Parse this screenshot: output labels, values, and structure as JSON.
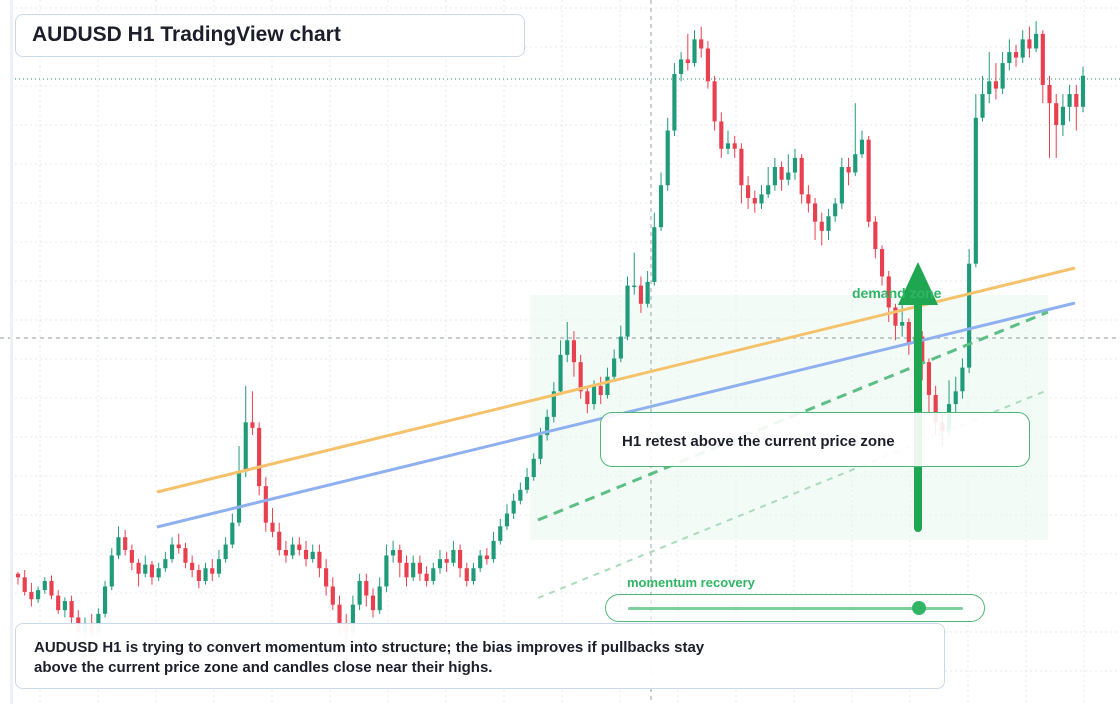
{
  "chart_data": {
    "type": "candlestick",
    "title": "AUDUSD H1 TradingView chart",
    "symbol": "AUDUSD",
    "timeframe": "H1",
    "colors": {
      "up": "#1f9b7a",
      "down": "#e8404f",
      "grid": "#e6e9ee",
      "trend_orange": "#f5c26b",
      "trend_blue": "#8fb0f0",
      "accent_green": "#2fb565"
    },
    "candles": [
      [
        0.92,
        0.9,
        0.93,
        0.86
      ],
      [
        0.9,
        0.82,
        0.94,
        0.8
      ],
      [
        0.82,
        0.78,
        0.87,
        0.74
      ],
      [
        0.78,
        0.83,
        0.85,
        0.76
      ],
      [
        0.83,
        0.88,
        0.9,
        0.81
      ],
      [
        0.88,
        0.8,
        0.91,
        0.78
      ],
      [
        0.8,
        0.72,
        0.83,
        0.7
      ],
      [
        0.72,
        0.77,
        0.79,
        0.68
      ],
      [
        0.77,
        0.68,
        0.8,
        0.64
      ],
      [
        0.68,
        0.6,
        0.72,
        0.55
      ],
      [
        0.6,
        0.65,
        0.68,
        0.57
      ],
      [
        0.65,
        0.6,
        0.7,
        0.57
      ],
      [
        0.6,
        0.7,
        0.73,
        0.58
      ],
      [
        0.7,
        0.85,
        0.88,
        0.68
      ],
      [
        0.85,
        1.02,
        1.06,
        0.83
      ],
      [
        1.02,
        1.12,
        1.18,
        1.0
      ],
      [
        1.12,
        1.05,
        1.16,
        1.02
      ],
      [
        1.05,
        0.98,
        1.08,
        0.94
      ],
      [
        0.98,
        0.92,
        1.0,
        0.85
      ],
      [
        0.92,
        0.97,
        1.02,
        0.9
      ],
      [
        0.97,
        0.9,
        0.99,
        0.86
      ],
      [
        0.9,
        0.95,
        0.98,
        0.88
      ],
      [
        0.95,
        1.0,
        1.04,
        0.93
      ],
      [
        1.0,
        1.08,
        1.12,
        0.98
      ],
      [
        1.08,
        1.06,
        1.14,
        1.03
      ],
      [
        1.06,
        0.98,
        1.09,
        0.95
      ],
      [
        0.98,
        0.94,
        1.02,
        0.9
      ],
      [
        0.94,
        0.88,
        0.97,
        0.84
      ],
      [
        0.88,
        0.95,
        0.98,
        0.86
      ],
      [
        0.95,
        0.92,
        1.0,
        0.88
      ],
      [
        0.92,
        1.0,
        1.05,
        0.9
      ],
      [
        1.0,
        1.08,
        1.12,
        0.98
      ],
      [
        1.08,
        1.2,
        1.25,
        1.06
      ],
      [
        1.2,
        1.48,
        1.62,
        1.18
      ],
      [
        1.48,
        1.75,
        1.95,
        1.45
      ],
      [
        1.75,
        1.72,
        1.92,
        1.68
      ],
      [
        1.72,
        1.4,
        1.75,
        1.35
      ],
      [
        1.4,
        1.2,
        1.45,
        1.15
      ],
      [
        1.2,
        1.15,
        1.28,
        1.12
      ],
      [
        1.15,
        1.05,
        1.2,
        1.02
      ],
      [
        1.05,
        1.02,
        1.1,
        0.98
      ],
      [
        1.02,
        1.08,
        1.12,
        1.0
      ],
      [
        1.08,
        1.05,
        1.12,
        1.02
      ],
      [
        1.05,
        1.0,
        1.1,
        0.96
      ],
      [
        1.0,
        1.04,
        1.08,
        0.98
      ],
      [
        1.04,
        0.95,
        1.08,
        0.9
      ],
      [
        0.95,
        0.85,
        1.0,
        0.8
      ],
      [
        0.85,
        0.75,
        0.9,
        0.72
      ],
      [
        0.75,
        0.65,
        0.8,
        0.58
      ],
      [
        0.65,
        0.6,
        0.7,
        0.55
      ],
      [
        0.6,
        0.75,
        0.8,
        0.58
      ],
      [
        0.75,
        0.88,
        0.92,
        0.72
      ],
      [
        0.88,
        0.8,
        0.92,
        0.74
      ],
      [
        0.8,
        0.72,
        0.84,
        0.68
      ],
      [
        0.72,
        0.85,
        0.9,
        0.7
      ],
      [
        0.85,
        1.02,
        1.08,
        0.82
      ],
      [
        1.02,
        1.05,
        1.1,
        0.98
      ],
      [
        1.05,
        0.98,
        1.08,
        0.9
      ],
      [
        0.98,
        0.9,
        1.02,
        0.85
      ],
      [
        0.9,
        0.98,
        1.02,
        0.88
      ],
      [
        0.98,
        0.92,
        1.02,
        0.88
      ],
      [
        0.92,
        0.88,
        0.96,
        0.85
      ],
      [
        0.88,
        0.95,
        0.98,
        0.86
      ],
      [
        0.95,
        1.0,
        1.05,
        0.92
      ],
      [
        1.0,
        0.98,
        1.04,
        0.93
      ],
      [
        0.98,
        1.05,
        1.1,
        0.96
      ],
      [
        1.05,
        0.95,
        1.08,
        0.9
      ],
      [
        0.95,
        0.88,
        0.98,
        0.85
      ],
      [
        0.88,
        0.95,
        0.98,
        0.86
      ],
      [
        0.95,
        1.02,
        1.05,
        0.93
      ],
      [
        1.02,
        1.0,
        1.06,
        0.97
      ],
      [
        1.0,
        1.1,
        1.15,
        0.98
      ],
      [
        1.1,
        1.18,
        1.22,
        1.08
      ],
      [
        1.18,
        1.25,
        1.3,
        1.16
      ],
      [
        1.25,
        1.32,
        1.36,
        1.22
      ],
      [
        1.32,
        1.38,
        1.42,
        1.3
      ],
      [
        1.38,
        1.45,
        1.5,
        1.36
      ],
      [
        1.45,
        1.55,
        1.58,
        1.43
      ],
      [
        1.55,
        1.68,
        1.72,
        1.52
      ],
      [
        1.68,
        1.78,
        1.82,
        1.65
      ],
      [
        1.78,
        1.92,
        1.97,
        1.75
      ],
      [
        1.92,
        2.12,
        2.2,
        1.9
      ],
      [
        2.12,
        2.2,
        2.3,
        2.08
      ],
      [
        2.2,
        2.08,
        2.25,
        2.0
      ],
      [
        2.08,
        1.92,
        2.12,
        1.88
      ],
      [
        1.92,
        1.85,
        1.95,
        1.8
      ],
      [
        1.85,
        1.95,
        1.98,
        1.82
      ],
      [
        1.95,
        1.9,
        2.0,
        1.85
      ],
      [
        1.9,
        2.0,
        2.05,
        1.88
      ],
      [
        2.0,
        2.1,
        2.15,
        1.98
      ],
      [
        2.1,
        2.22,
        2.28,
        2.08
      ],
      [
        2.22,
        2.5,
        2.55,
        2.2
      ],
      [
        2.5,
        2.5,
        2.68,
        2.45
      ],
      [
        2.5,
        2.4,
        2.55,
        2.35
      ],
      [
        2.4,
        2.52,
        2.58,
        2.38
      ],
      [
        2.52,
        2.82,
        2.9,
        2.5
      ],
      [
        2.82,
        3.05,
        3.12,
        2.8
      ],
      [
        3.05,
        3.35,
        3.42,
        3.02
      ],
      [
        3.35,
        3.66,
        3.72,
        3.32
      ],
      [
        3.66,
        3.74,
        3.78,
        3.62
      ],
      [
        3.74,
        3.72,
        3.88,
        3.68
      ],
      [
        3.72,
        3.85,
        3.9,
        3.7
      ],
      [
        3.85,
        3.8,
        3.92,
        3.75
      ],
      [
        3.8,
        3.62,
        3.84,
        3.58
      ],
      [
        3.62,
        3.4,
        3.65,
        3.35
      ],
      [
        3.4,
        3.25,
        3.45,
        3.2
      ],
      [
        3.25,
        3.28,
        3.35,
        3.22
      ],
      [
        3.28,
        3.25,
        3.32,
        3.2
      ],
      [
        3.25,
        3.05,
        3.28,
        2.95
      ],
      [
        3.05,
        2.98,
        3.1,
        2.92
      ],
      [
        2.98,
        2.95,
        3.02,
        2.9
      ],
      [
        2.95,
        3.0,
        3.05,
        2.92
      ],
      [
        3.0,
        3.05,
        3.15,
        2.98
      ],
      [
        3.05,
        3.15,
        3.2,
        3.02
      ],
      [
        3.15,
        3.08,
        3.18,
        3.02
      ],
      [
        3.08,
        3.12,
        3.22,
        3.05
      ],
      [
        3.12,
        3.2,
        3.25,
        3.08
      ],
      [
        3.2,
        3.0,
        3.22,
        2.95
      ],
      [
        3.0,
        2.95,
        3.05,
        2.9
      ],
      [
        2.95,
        2.85,
        2.98,
        2.75
      ],
      [
        2.85,
        2.8,
        2.9,
        2.72
      ],
      [
        2.8,
        2.88,
        2.92,
        2.75
      ],
      [
        2.88,
        2.95,
        2.98,
        2.85
      ],
      [
        2.95,
        3.15,
        3.2,
        2.92
      ],
      [
        3.15,
        3.12,
        3.2,
        3.05
      ],
      [
        3.12,
        3.22,
        3.5,
        3.1
      ],
      [
        3.22,
        3.3,
        3.35,
        3.2
      ],
      [
        3.3,
        2.85,
        3.32,
        2.82
      ],
      [
        2.85,
        2.7,
        2.88,
        2.65
      ],
      [
        2.7,
        2.55,
        2.72,
        2.5
      ],
      [
        2.55,
        2.38,
        2.58,
        2.3
      ],
      [
        2.38,
        2.28,
        2.4,
        2.2
      ],
      [
        2.28,
        2.3,
        2.4,
        2.22
      ],
      [
        2.3,
        2.18,
        2.32,
        2.12
      ],
      [
        2.18,
        2.22,
        2.3,
        2.15
      ],
      [
        2.22,
        2.08,
        2.25,
        1.98
      ],
      [
        2.08,
        1.9,
        2.1,
        1.8
      ],
      [
        1.9,
        1.75,
        1.95,
        1.68
      ],
      [
        1.75,
        1.7,
        1.8,
        1.62
      ],
      [
        1.7,
        1.85,
        1.98,
        1.68
      ],
      [
        1.85,
        1.92,
        2.0,
        1.8
      ],
      [
        1.92,
        2.05,
        2.1,
        1.88
      ],
      [
        2.05,
        2.62,
        2.7,
        2.02
      ],
      [
        2.62,
        3.42,
        3.55,
        2.6
      ],
      [
        3.42,
        3.55,
        3.65,
        3.4
      ],
      [
        3.55,
        3.62,
        3.78,
        3.5
      ],
      [
        3.62,
        3.58,
        3.72,
        3.52
      ],
      [
        3.58,
        3.72,
        3.78,
        3.55
      ],
      [
        3.72,
        3.78,
        3.85,
        3.68
      ],
      [
        3.78,
        3.75,
        3.82,
        3.7
      ],
      [
        3.75,
        3.85,
        3.9,
        3.72
      ],
      [
        3.85,
        3.8,
        3.92,
        3.75
      ],
      [
        3.8,
        3.88,
        3.95,
        3.78
      ],
      [
        3.88,
        3.6,
        3.9,
        3.5
      ],
      [
        3.6,
        3.5,
        3.65,
        3.2
      ],
      [
        3.5,
        3.38,
        3.55,
        3.2
      ],
      [
        3.38,
        3.48,
        3.55,
        3.32
      ],
      [
        3.48,
        3.55,
        3.6,
        3.4
      ],
      [
        3.55,
        3.48,
        3.6,
        3.35
      ],
      [
        3.48,
        3.65,
        3.7,
        3.45
      ]
    ],
    "grid": true,
    "trendlines": [
      {
        "name": "orange-trendline",
        "color": "#f5c26b"
      },
      {
        "name": "blue-trendline",
        "color": "#8fb0f0"
      }
    ]
  },
  "title": "AUDUSD H1 TradingView chart",
  "zone_label": "demand zone",
  "callout": "H1 retest above the current price zone",
  "momentum": {
    "label": "momentum recovery",
    "level": 0.87
  },
  "summary": {
    "line1": "AUDUSD H1 is trying to convert momentum into structure; the bias improves if pullbacks stay",
    "line2": "above the current price zone and candles close near their highs."
  }
}
